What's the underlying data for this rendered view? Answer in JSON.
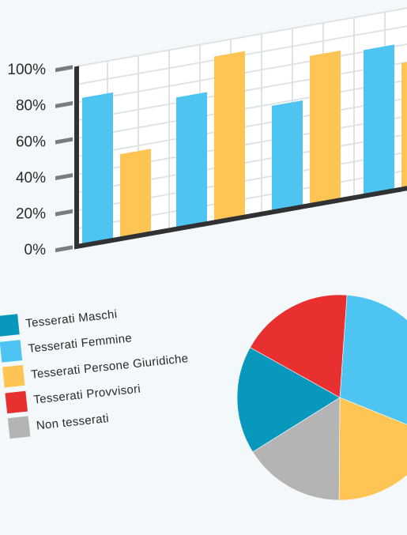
{
  "colors": {
    "maschi": "#0898bb",
    "femmine": "#4ec4f2",
    "giuridiche": "#fec454",
    "provvisori": "#e83030",
    "non_tesserati": "#b4b4b5",
    "axis": "#2f3133",
    "tick": "#7a7d80",
    "grid": "#dfe3e6",
    "plot_bg": "#ffffff",
    "text": "#2a2a2a"
  },
  "chart_data": [
    {
      "type": "bar",
      "title": "",
      "xlabel": "",
      "ylabel": "",
      "ylim": [
        0,
        100
      ],
      "yticks": [
        "0%",
        "20%",
        "40%",
        "60%",
        "80%",
        "100%"
      ],
      "grid": true,
      "categories": [
        "",
        "",
        "",
        ""
      ],
      "series": [
        {
          "color": "#4ec4f2",
          "values": [
            82,
            73,
            59,
            81
          ]
        },
        {
          "color": "#fec454",
          "values": [
            47,
            92,
            83,
            70
          ]
        }
      ]
    },
    {
      "type": "pie",
      "title": "",
      "legend_placement": "left",
      "slices": [
        {
          "label": "Tesserati Maschi",
          "color": "#0898bb",
          "value": 17
        },
        {
          "label": "Tesserati Femmine",
          "color": "#4ec4f2",
          "value": 30
        },
        {
          "label": "Tesserati Persone Giuridiche",
          "color": "#fec454",
          "value": 19
        },
        {
          "label": "Tesserati Provvisori",
          "color": "#e83030",
          "value": 18
        },
        {
          "label": "Non tesserati",
          "color": "#b4b4b5",
          "value": 16
        }
      ]
    }
  ],
  "legend": {
    "items": [
      {
        "label": "Tesserati Maschi",
        "color": "#0898bb"
      },
      {
        "label": "Tesserati Femmine",
        "color": "#4ec4f2"
      },
      {
        "label": "Tesserati Persone Giuridiche",
        "color": "#fec454"
      },
      {
        "label": "Tesserati Provvisori",
        "color": "#e83030"
      },
      {
        "label": "Non tesserati",
        "color": "#b4b4b5"
      }
    ]
  }
}
